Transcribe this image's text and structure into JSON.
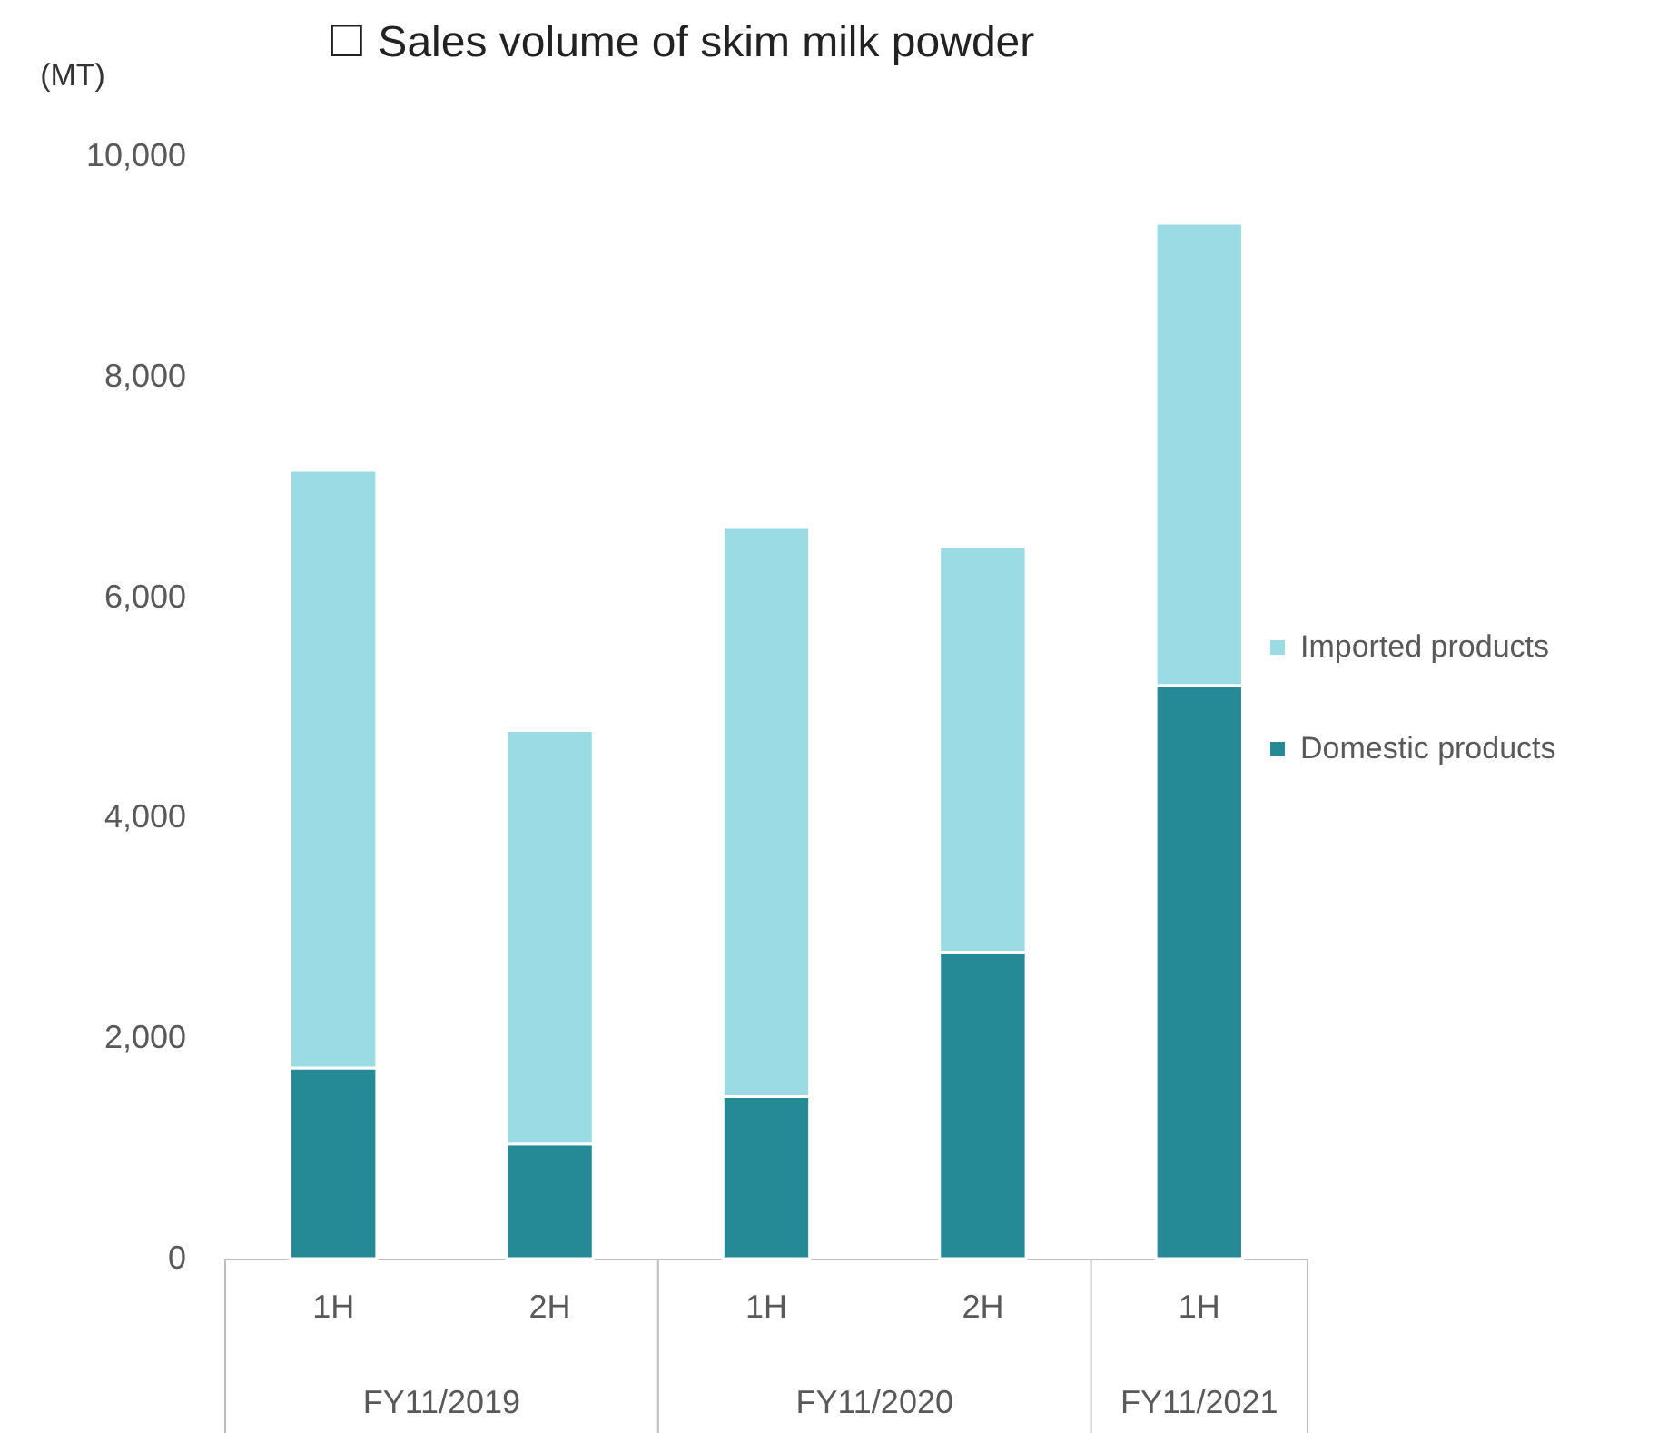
{
  "chart_data": {
    "type": "bar",
    "title": "☐ Sales volume of skim milk powder",
    "ylabel": "(MT)",
    "categories": [
      "1H",
      "2H",
      "1H",
      "2H",
      "1H"
    ],
    "annotations": [
      "FY11/2019",
      "FY11/2020",
      "FY11/2021"
    ],
    "stacked": true,
    "series": [
      {
        "name": "Domestic products",
        "color": "#268a96",
        "values": [
          1730,
          1040,
          1470,
          2780,
          5200
        ]
      },
      {
        "name": "Imported products",
        "color": "#9adbe4",
        "values": [
          5420,
          3750,
          5170,
          3680,
          4190
        ]
      }
    ],
    "ylim": [
      0,
      10000
    ],
    "yticks": [
      0,
      {
        "value": 2000,
        "label": "2,000"
      },
      {
        "value": 4000,
        "label": "4,000"
      },
      {
        "value": 6000,
        "label": "6,000"
      },
      {
        "value": 8000,
        "label": "8,000"
      },
      {
        "value": 10000,
        "label": "10,000"
      }
    ],
    "grid": false,
    "legend": "right"
  }
}
